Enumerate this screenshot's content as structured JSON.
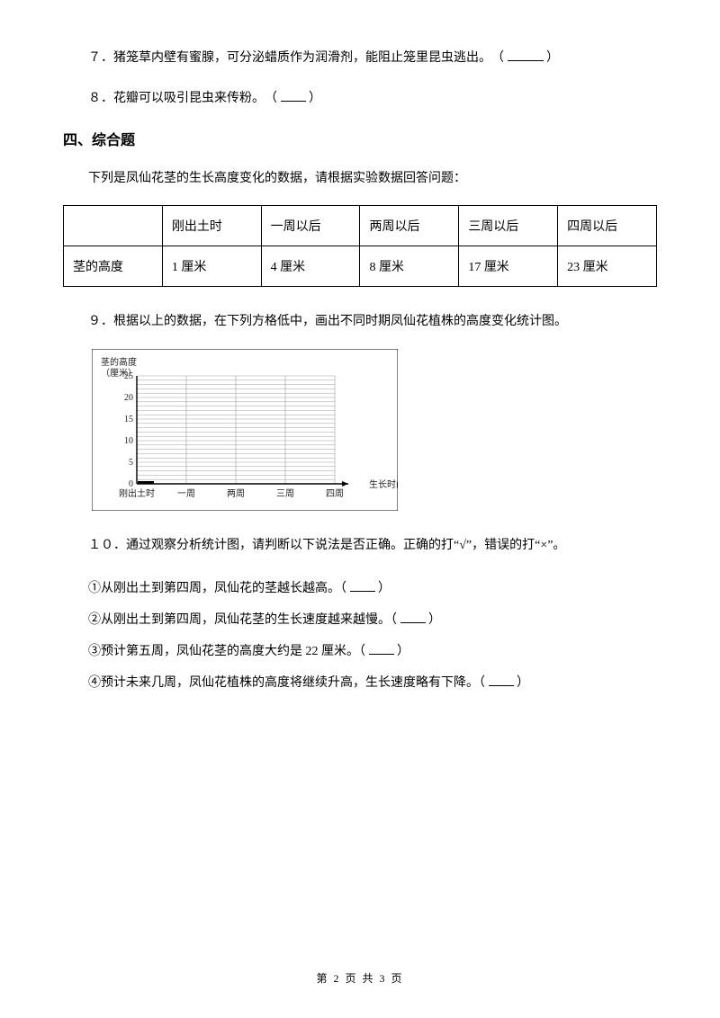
{
  "questions": {
    "q7": "７．猪笼草内壁有蜜腺，可分泌蜡质作为润滑剂，能阻止笼里昆虫逃出。　（",
    "q7_end": "）",
    "q8": "８．花瓣可以吸引昆虫来传粉。　（",
    "q8_end": "）"
  },
  "section_title": "四、综合题",
  "intro": "下列是凤仙花茎的生长高度变化的数据，请根据实验数据回答问题：",
  "table": {
    "headers": [
      "",
      "刚出土时",
      "一周以后",
      "两周以后",
      "三周以后",
      "四周以后"
    ],
    "row_label": "茎的高度",
    "values": [
      "1 厘米",
      "4 厘米",
      "8 厘米",
      "17 厘米",
      "23 厘米"
    ],
    "values_numeric": [
      1,
      4,
      8,
      17,
      23
    ]
  },
  "q9": "９．根据以上的数据，在下列方格低中，画出不同时期凤仙花植株的高度变化统计图。",
  "chart": {
    "y_label_line1": "茎的高度",
    "y_label_line2": "（厘米）",
    "y_ticks": [
      0,
      5,
      10,
      15,
      20,
      25
    ],
    "x_label": "生长时间（周）",
    "x_ticks": [
      "刚出土时",
      "一周",
      "两周",
      "三周",
      "四周"
    ],
    "grid_color": "#888888",
    "axis_color": "#000000",
    "bg_color": "#ffffff",
    "text_color": "#222222",
    "y_min": 0,
    "y_max": 25,
    "y_step": 5,
    "minor_y_count": 5,
    "axis_font_size": 10
  },
  "q10_lead": "１０．通过观察分析统计图，请判断以下说法是否正确。正确的打“√”，错误的打“×”。",
  "subs": {
    "s1": "①从刚出土到第四周，凤仙花的茎越长越高。（",
    "s2": "②从刚出土到第四周，凤仙花茎的生长速度越来越慢。（",
    "s3": "③预计第五周，凤仙花茎的高度大约是 22 厘米。（",
    "s4": "④预计未来几周，凤仙花植株的高度将继续升高，生长速度略有下降。（",
    "end": "）"
  },
  "footer": "第 2 页 共 3 页"
}
